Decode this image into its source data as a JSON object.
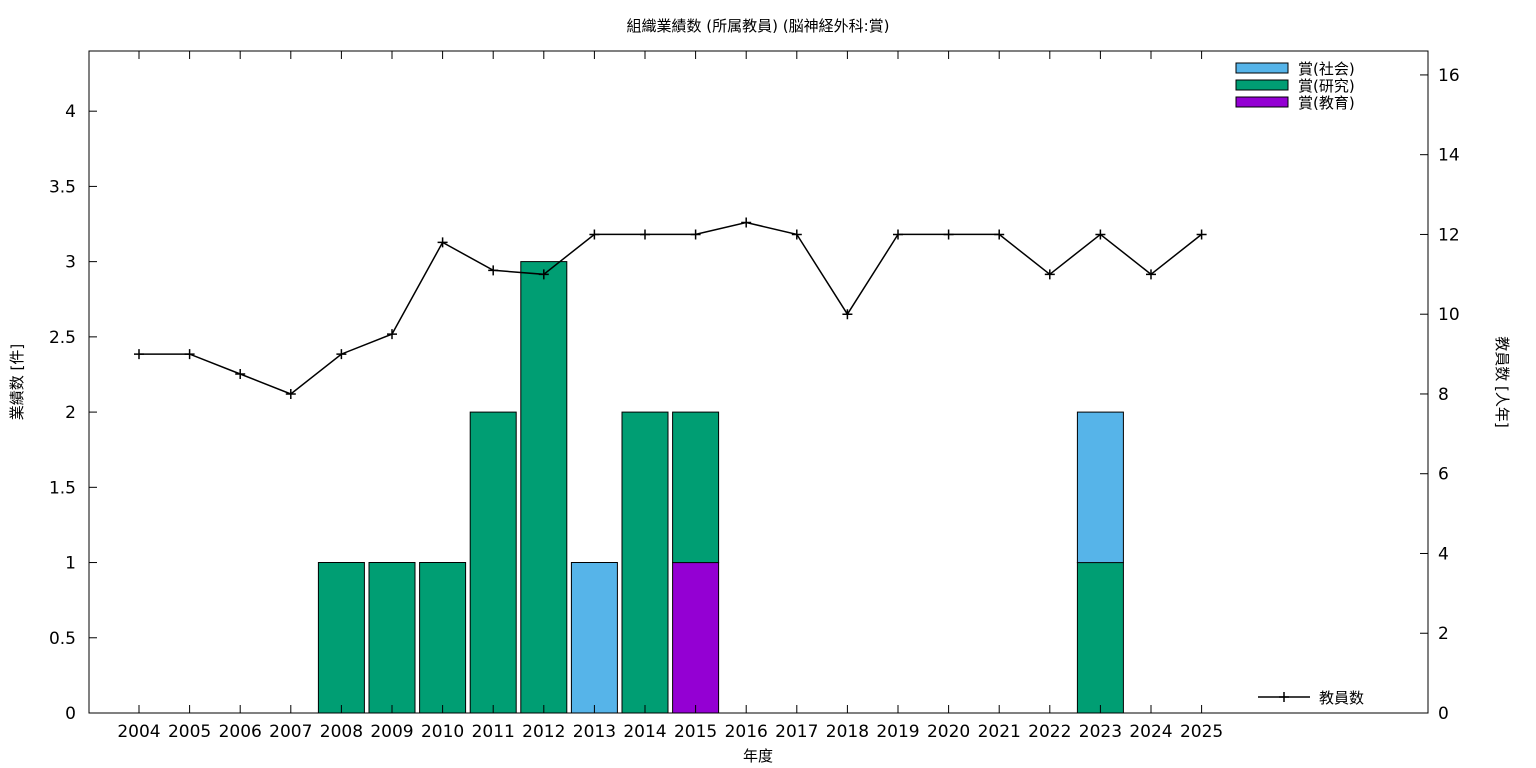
{
  "chart_data": {
    "type": "bar",
    "stacked": true,
    "title": "組織業績数 (所属教員) (脳神経外科:賞)",
    "xlabel": "年度",
    "ylabel": "業績数 [件]",
    "y2label": "教員数 [人年]",
    "categories": [
      "2004",
      "2005",
      "2006",
      "2007",
      "2008",
      "2009",
      "2010",
      "2011",
      "2012",
      "2013",
      "2014",
      "2015",
      "2016",
      "2017",
      "2018",
      "2019",
      "2020",
      "2021",
      "2022",
      "2023",
      "2024",
      "2025"
    ],
    "ylim": [
      0,
      4.4
    ],
    "yticks": [
      "0",
      "0.5",
      "1",
      "1.5",
      "2",
      "2.5",
      "3",
      "3.5",
      "4"
    ],
    "y2lim": [
      0,
      16.6
    ],
    "y2ticks": [
      "0",
      "2",
      "4",
      "6",
      "8",
      "10",
      "12",
      "14",
      "16"
    ],
    "series": [
      {
        "name": "賞(教育)",
        "color": "#9400d3",
        "values": [
          0,
          0,
          0,
          0,
          0,
          0,
          0,
          0,
          0,
          0,
          0,
          1,
          0,
          0,
          0,
          0,
          0,
          0,
          0,
          0,
          0,
          0
        ]
      },
      {
        "name": "賞(研究)",
        "color": "#009e73",
        "values": [
          0,
          0,
          0,
          0,
          1,
          1,
          1,
          2,
          3,
          0,
          2,
          1,
          0,
          0,
          0,
          0,
          0,
          0,
          0,
          1,
          0,
          0
        ]
      },
      {
        "name": "賞(社会)",
        "color": "#56b4e9",
        "values": [
          0,
          0,
          0,
          0,
          0,
          0,
          0,
          0,
          0,
          1,
          0,
          0,
          0,
          0,
          0,
          0,
          0,
          0,
          0,
          1,
          0,
          0
        ]
      }
    ],
    "legend_order": [
      "賞(社会)",
      "賞(研究)",
      "賞(教育)"
    ],
    "legend_position": "top-right",
    "line_series": {
      "name": "教員数",
      "axis": "y2",
      "color": "#000000",
      "marker": "plus",
      "values": [
        9,
        9,
        8.5,
        8,
        9,
        9.5,
        11.8,
        11.1,
        11,
        12,
        12,
        12,
        12.3,
        12,
        10,
        12,
        12,
        12,
        11,
        12,
        11,
        12
      ],
      "legend_position": "bottom-right"
    }
  }
}
